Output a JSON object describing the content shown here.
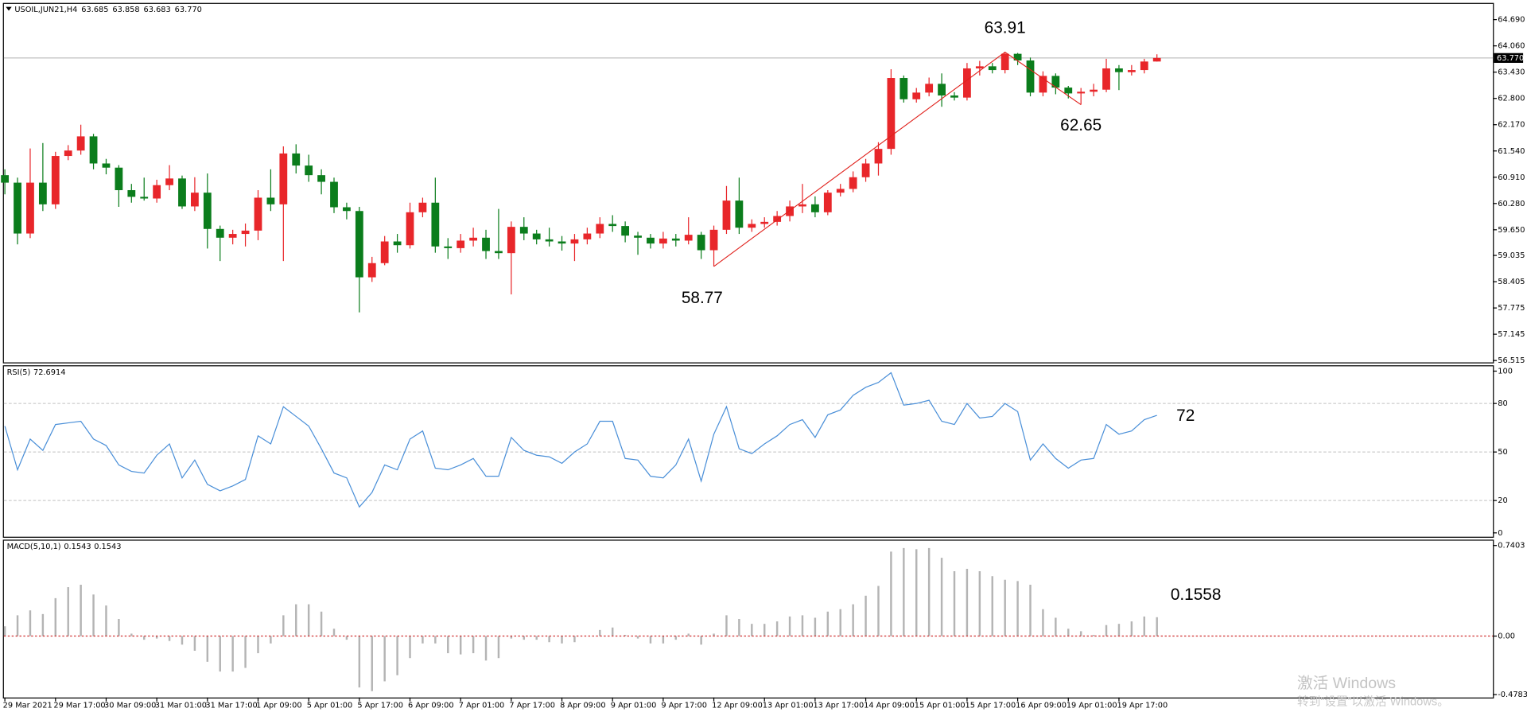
{
  "chart_data": [
    {
      "type": "candlestick",
      "title": "USOIL,JUN21,H4",
      "legend_values": [
        {
          "value": 63.685,
          "label": "63.685"
        },
        {
          "value": 63.858,
          "label": "63.858"
        },
        {
          "value": 63.683,
          "label": "63.683"
        },
        {
          "value": 63.77,
          "label": "63.770"
        }
      ],
      "categories": [
        "29 Mar 2021",
        null,
        null,
        null,
        "29 Mar 17:00",
        null,
        null,
        null,
        "30 Mar 09:00",
        null,
        null,
        null,
        "31 Mar 01:00",
        null,
        null,
        null,
        "31 Mar 17:00",
        null,
        null,
        null,
        "1 Apr 09:00",
        null,
        null,
        null,
        "5 Apr 01:00",
        null,
        null,
        null,
        "5 Apr 17:00",
        null,
        null,
        null,
        "6 Apr 09:00",
        null,
        null,
        null,
        "7 Apr 01:00",
        null,
        null,
        null,
        "7 Apr 17:00",
        null,
        null,
        null,
        "8 Apr 09:00",
        null,
        null,
        null,
        "9 Apr 01:00",
        null,
        null,
        null,
        "9 Apr 17:00",
        null,
        null,
        null,
        "12 Apr 09:00",
        null,
        null,
        null,
        "13 Apr 01:00",
        null,
        null,
        null,
        "13 Apr 17:00",
        null,
        null,
        null,
        "14 Apr 09:00",
        null,
        null,
        null,
        "15 Apr 01:00",
        null,
        null,
        null,
        "15 Apr 17:00",
        null,
        null,
        null,
        "16 Apr 09:00",
        null,
        null,
        null,
        "19 Apr 01:00",
        null,
        null,
        null,
        "19 Apr 17:00",
        null,
        null,
        null
      ],
      "open": [
        60.96,
        60.78,
        59.56,
        60.78,
        60.26,
        61.42,
        61.55,
        61.89,
        61.24,
        61.14,
        60.6,
        60.44,
        60.4,
        60.72,
        60.88,
        60.21,
        60.54,
        59.67,
        59.46,
        59.55,
        59.63,
        60.42,
        60.26,
        61.48,
        61.19,
        60.96,
        60.8,
        60.19,
        60.1,
        58.51,
        58.85,
        59.37,
        59.28,
        60.07,
        60.3,
        59.25,
        59.21,
        59.39,
        59.46,
        59.14,
        59.09,
        59.72,
        59.56,
        59.42,
        59.37,
        59.32,
        59.42,
        59.56,
        59.79,
        59.74,
        59.51,
        59.46,
        59.32,
        59.44,
        59.39,
        59.53,
        59.16,
        59.65,
        60.35,
        59.7,
        59.79,
        59.84,
        59.98,
        60.21,
        60.26,
        60.07,
        60.54,
        60.63,
        60.91,
        61.24,
        61.59,
        63.29,
        62.78,
        62.94,
        63.15,
        62.87,
        62.82,
        63.52,
        63.57,
        63.48,
        63.87,
        63.71,
        62.94,
        63.34,
        63.06,
        62.92,
        62.96,
        63.01,
        63.52,
        63.43,
        63.48,
        63.685
      ],
      "high": [
        61.1,
        60.9,
        61.6,
        61.73,
        61.52,
        61.68,
        62.17,
        61.95,
        61.35,
        61.2,
        60.75,
        60.9,
        60.85,
        61.2,
        60.95,
        60.91,
        61.0,
        59.75,
        59.65,
        59.8,
        60.6,
        61.1,
        61.65,
        61.7,
        61.45,
        61.1,
        60.9,
        60.3,
        60.2,
        59.0,
        59.5,
        59.55,
        60.3,
        60.42,
        60.9,
        59.45,
        59.55,
        59.7,
        59.65,
        60.15,
        59.85,
        59.95,
        59.65,
        59.7,
        59.5,
        59.55,
        59.7,
        59.95,
        60.0,
        59.85,
        59.6,
        59.55,
        59.6,
        59.55,
        59.95,
        59.6,
        59.75,
        60.7,
        60.9,
        59.9,
        59.95,
        60.1,
        60.35,
        60.75,
        60.45,
        60.6,
        60.75,
        61.05,
        61.35,
        61.75,
        63.5,
        63.35,
        63.05,
        63.3,
        63.4,
        62.95,
        63.65,
        63.7,
        63.65,
        63.91,
        63.89,
        63.78,
        63.45,
        63.4,
        63.1,
        63.05,
        63.15,
        63.75,
        63.6,
        63.6,
        63.75,
        63.858
      ],
      "low": [
        60.5,
        59.3,
        59.45,
        60.1,
        60.15,
        61.32,
        61.45,
        61.1,
        60.98,
        60.2,
        60.3,
        60.35,
        60.3,
        60.6,
        60.15,
        60.1,
        59.2,
        58.9,
        59.3,
        59.25,
        59.4,
        60.1,
        58.9,
        61.0,
        60.8,
        60.5,
        60.05,
        59.9,
        57.67,
        58.4,
        58.8,
        59.1,
        59.2,
        59.95,
        59.1,
        58.95,
        59.1,
        59.25,
        58.95,
        58.95,
        58.1,
        59.4,
        59.3,
        59.25,
        59.15,
        58.9,
        59.3,
        59.45,
        59.6,
        59.35,
        59.05,
        59.2,
        59.2,
        59.25,
        59.3,
        58.95,
        58.77,
        59.55,
        59.55,
        59.6,
        59.7,
        59.75,
        59.85,
        60.05,
        59.95,
        60.0,
        60.45,
        60.55,
        60.8,
        60.95,
        61.45,
        62.7,
        62.7,
        62.85,
        62.6,
        62.75,
        62.75,
        63.35,
        63.4,
        63.4,
        63.6,
        62.85,
        62.85,
        62.9,
        62.8,
        62.65,
        62.85,
        62.95,
        63.0,
        63.35,
        63.4,
        63.683
      ],
      "close": [
        60.78,
        59.56,
        60.78,
        60.26,
        61.42,
        61.55,
        61.89,
        61.24,
        61.14,
        60.6,
        60.44,
        60.4,
        60.72,
        60.88,
        60.21,
        60.54,
        59.67,
        59.46,
        59.55,
        59.63,
        60.42,
        60.26,
        61.48,
        61.19,
        60.96,
        60.8,
        60.19,
        60.1,
        58.51,
        58.85,
        59.37,
        59.28,
        60.07,
        60.3,
        59.25,
        59.21,
        59.39,
        59.46,
        59.14,
        59.09,
        59.72,
        59.56,
        59.42,
        59.37,
        59.32,
        59.42,
        59.56,
        59.79,
        59.74,
        59.51,
        59.46,
        59.32,
        59.44,
        59.39,
        59.53,
        59.16,
        59.65,
        60.35,
        59.7,
        59.79,
        59.84,
        59.98,
        60.21,
        60.26,
        60.07,
        60.54,
        60.63,
        60.91,
        61.24,
        61.59,
        63.29,
        62.78,
        62.94,
        63.15,
        62.87,
        62.82,
        63.52,
        63.57,
        63.48,
        63.87,
        63.71,
        62.94,
        63.34,
        63.06,
        62.92,
        62.96,
        63.01,
        63.52,
        63.43,
        63.48,
        63.685,
        63.77
      ],
      "up_color": "#e8262a",
      "down_color": "#0b7d1c",
      "ylim": [
        56.47,
        65.09
      ],
      "yticks": [
        {
          "value": 64.69,
          "label": "64.690"
        },
        {
          "value": 64.06,
          "label": "64.060"
        },
        {
          "value": 63.43,
          "label": "63.430"
        },
        {
          "value": 62.8,
          "label": "62.800"
        },
        {
          "value": 62.17,
          "label": "62.170"
        },
        {
          "value": 61.54,
          "label": "61.540"
        },
        {
          "value": 60.91,
          "label": "60.910"
        },
        {
          "value": 60.28,
          "label": "60.280"
        },
        {
          "value": 59.65,
          "label": "59.650"
        },
        {
          "value": 59.035,
          "label": "59.035"
        },
        {
          "value": 58.405,
          "label": "58.405"
        },
        {
          "value": 57.775,
          "label": "57.775"
        },
        {
          "value": 57.145,
          "label": "57.145"
        },
        {
          "value": 56.515,
          "label": "56.515"
        }
      ],
      "current_price": {
        "value": 63.77,
        "label": "63.770"
      },
      "zigzag": {
        "candle_index": [
          56,
          79,
          85
        ],
        "values": [
          58.77,
          63.91,
          62.65
        ],
        "color": "#e0201b"
      }
    },
    {
      "type": "line",
      "title": "RSI(5)",
      "current": 72.6914,
      "values": [
        66,
        39,
        58,
        51,
        67,
        68,
        69,
        58,
        54,
        42,
        38,
        37,
        48,
        55,
        34,
        45,
        30,
        26,
        29,
        33,
        60,
        55,
        78,
        72,
        66,
        52,
        37,
        34,
        16,
        25,
        42,
        39,
        58,
        63,
        40,
        39,
        42,
        46,
        35,
        35,
        59,
        51,
        48,
        47,
        43,
        50,
        55,
        69,
        69,
        46,
        45,
        35,
        34,
        42,
        58,
        32,
        61,
        78,
        52,
        49,
        55,
        60,
        67,
        70,
        59,
        73,
        76,
        85,
        90,
        93,
        99,
        79,
        80,
        82,
        69,
        67,
        80,
        71,
        72,
        80,
        75,
        45,
        55,
        46,
        40,
        45,
        46,
        67,
        61,
        63,
        70,
        72.6914
      ],
      "color": "#4a8fd8",
      "ylim": [
        -2.4,
        103.6
      ],
      "yticks": [
        100,
        80,
        50,
        20,
        0
      ],
      "levels": [
        80,
        50,
        20
      ],
      "annotation": {
        "value": 72,
        "color": "#e0201b"
      }
    },
    {
      "type": "bar",
      "title": "MACD(5,10,1)",
      "current": [
        0.1543,
        0.1543
      ],
      "values": [
        0.08,
        0.17,
        0.21,
        0.18,
        0.31,
        0.4,
        0.42,
        0.34,
        0.25,
        0.14,
        0.02,
        -0.03,
        -0.02,
        -0.04,
        -0.07,
        -0.12,
        -0.21,
        -0.29,
        -0.29,
        -0.26,
        -0.14,
        -0.06,
        0.17,
        0.26,
        0.26,
        0.2,
        0.06,
        -0.03,
        -0.42,
        -0.45,
        -0.37,
        -0.32,
        -0.18,
        -0.06,
        -0.06,
        -0.14,
        -0.15,
        -0.14,
        -0.2,
        -0.18,
        -0.02,
        -0.03,
        -0.03,
        -0.05,
        -0.06,
        -0.05,
        0,
        0.05,
        0.07,
        0.01,
        -0.02,
        -0.06,
        -0.06,
        -0.03,
        0.02,
        -0.07,
        0.02,
        0.17,
        0.14,
        0.1,
        0.1,
        0.12,
        0.16,
        0.17,
        0.15,
        0.2,
        0.22,
        0.26,
        0.33,
        0.41,
        0.69,
        0.72,
        0.71,
        0.72,
        0.64,
        0.53,
        0.55,
        0.53,
        0.49,
        0.46,
        0.45,
        0.42,
        0.22,
        0.15,
        0.06,
        0.04,
        0.01,
        0.09,
        0.1,
        0.12,
        0.16,
        0.1543
      ],
      "color": "#b4b4b4",
      "signal_color": "#d03030",
      "ylim": [
        -0.502,
        0.788
      ],
      "yticks": [
        0.7403,
        {
          "value": 0,
          "label": "0.00"
        },
        -0.4783
      ],
      "annotation": {
        "value": 0.1558,
        "color": "#e0201b"
      }
    }
  ],
  "watermark": {
    "title": "激活 Windows",
    "subtitle": "转到“设置”以激活 Windows。"
  }
}
